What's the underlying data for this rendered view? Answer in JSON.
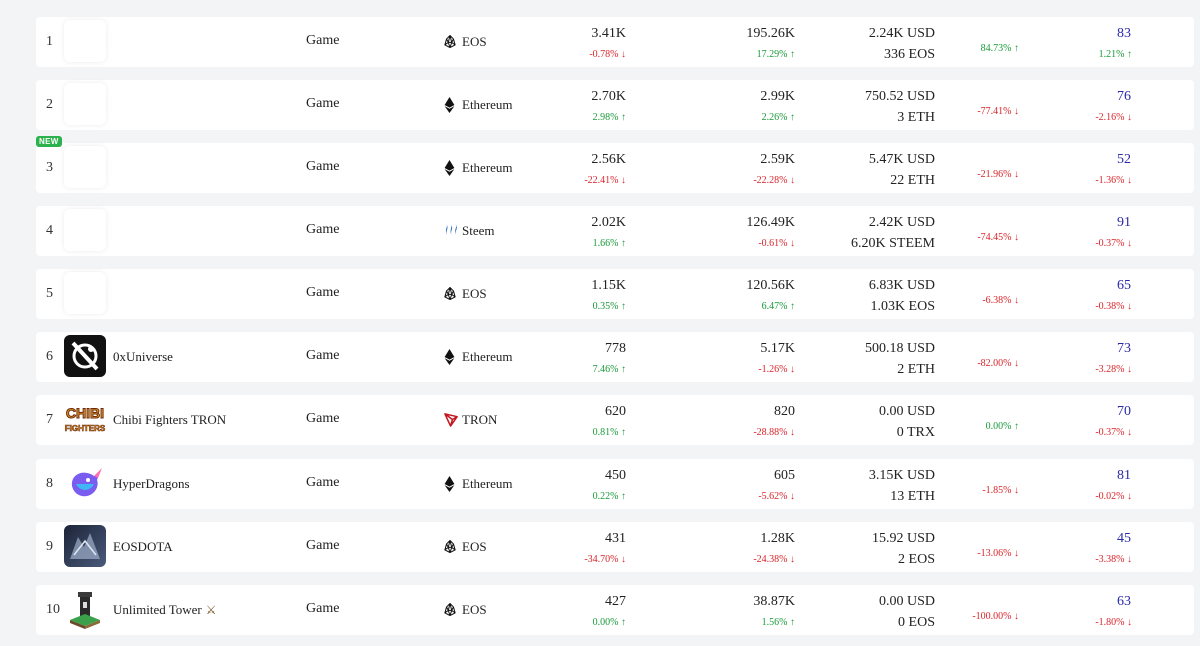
{
  "colors": {
    "up": "#1a9a3a",
    "down": "#d9252b",
    "score": "#2a2aa8",
    "new_badge": "#2bb24c"
  },
  "rows": [
    {
      "rank": "1",
      "name": "",
      "logo": "blank",
      "category": "Game",
      "chain": "EOS",
      "chain_icon": "eos-icon",
      "users": "3.41K",
      "users_change": "-0.78% ↓",
      "users_dir": "down",
      "tx": "195.26K",
      "tx_change": "17.29% ↑",
      "tx_dir": "up",
      "volume_usd": "2.24K USD",
      "volume_native": "336 EOS",
      "volume_change": "84.73% ↑",
      "volume_dir": "up",
      "score": "83",
      "score_change": "1.21% ↑",
      "score_dir": "up"
    },
    {
      "rank": "2",
      "name": "",
      "logo": "blank",
      "category": "Game",
      "chain": "Ethereum",
      "chain_icon": "ethereum-icon",
      "users": "2.70K",
      "users_change": "2.98% ↑",
      "users_dir": "up",
      "tx": "2.99K",
      "tx_change": "2.26% ↑",
      "tx_dir": "up",
      "volume_usd": "750.52 USD",
      "volume_native": "3 ETH",
      "volume_change": "-77.41% ↓",
      "volume_dir": "down",
      "score": "76",
      "score_change": "-2.16% ↓",
      "score_dir": "down"
    },
    {
      "rank": "3",
      "name": "",
      "logo": "blank",
      "badge": "NEW",
      "category": "Game",
      "chain": "Ethereum",
      "chain_icon": "ethereum-icon",
      "users": "2.56K",
      "users_change": "-22.41% ↓",
      "users_dir": "down",
      "tx": "2.59K",
      "tx_change": "-22.28% ↓",
      "tx_dir": "down",
      "volume_usd": "5.47K USD",
      "volume_native": "22 ETH",
      "volume_change": "-21.96% ↓",
      "volume_dir": "down",
      "score": "52",
      "score_change": "-1.36% ↓",
      "score_dir": "down"
    },
    {
      "rank": "4",
      "name": "",
      "logo": "blank",
      "category": "Game",
      "chain": "Steem",
      "chain_icon": "steem-icon",
      "users": "2.02K",
      "users_change": "1.66% ↑",
      "users_dir": "up",
      "tx": "126.49K",
      "tx_change": "-0.61% ↓",
      "tx_dir": "down",
      "volume_usd": "2.42K USD",
      "volume_native": "6.20K STEEM",
      "volume_change": "-74.45% ↓",
      "volume_dir": "down",
      "score": "91",
      "score_change": "-0.37% ↓",
      "score_dir": "down"
    },
    {
      "rank": "5",
      "name": "",
      "logo": "blank",
      "category": "Game",
      "chain": "EOS",
      "chain_icon": "eos-icon",
      "users": "1.15K",
      "users_change": "0.35% ↑",
      "users_dir": "up",
      "tx": "120.56K",
      "tx_change": "6.47% ↑",
      "tx_dir": "up",
      "volume_usd": "6.83K USD",
      "volume_native": "1.03K EOS",
      "volume_change": "-6.38% ↓",
      "volume_dir": "down",
      "score": "65",
      "score_change": "-0.38% ↓",
      "score_dir": "down"
    },
    {
      "rank": "6",
      "name": "0xUniverse",
      "logo": "0xuniverse",
      "category": "Game",
      "chain": "Ethereum",
      "chain_icon": "ethereum-icon",
      "users": "778",
      "users_change": "7.46% ↑",
      "users_dir": "up",
      "tx": "5.17K",
      "tx_change": "-1.26% ↓",
      "tx_dir": "down",
      "volume_usd": "500.18 USD",
      "volume_native": "2 ETH",
      "volume_change": "-82.00% ↓",
      "volume_dir": "down",
      "score": "73",
      "score_change": "-3.28% ↓",
      "score_dir": "down"
    },
    {
      "rank": "7",
      "name": "Chibi Fighters TRON",
      "logo": "chibi",
      "category": "Game",
      "chain": "TRON",
      "chain_icon": "tron-icon",
      "users": "620",
      "users_change": "0.81% ↑",
      "users_dir": "up",
      "tx": "820",
      "tx_change": "-28.88% ↓",
      "tx_dir": "down",
      "volume_usd": "0.00 USD",
      "volume_native": "0 TRX",
      "volume_change": "0.00% ↑",
      "volume_dir": "up",
      "score": "70",
      "score_change": "-0.37% ↓",
      "score_dir": "down"
    },
    {
      "rank": "8",
      "name": "HyperDragons",
      "logo": "hyperdragons",
      "category": "Game",
      "chain": "Ethereum",
      "chain_icon": "ethereum-icon",
      "users": "450",
      "users_change": "0.22% ↑",
      "users_dir": "up",
      "tx": "605",
      "tx_change": "-5.62% ↓",
      "tx_dir": "down",
      "volume_usd": "3.15K USD",
      "volume_native": "13 ETH",
      "volume_change": "-1.85% ↓",
      "volume_dir": "down",
      "score": "81",
      "score_change": "-0.02% ↓",
      "score_dir": "down"
    },
    {
      "rank": "9",
      "name": "EOSDOTA",
      "logo": "eosdota",
      "category": "Game",
      "chain": "EOS",
      "chain_icon": "eos-icon",
      "users": "431",
      "users_change": "-34.70% ↓",
      "users_dir": "down",
      "tx": "1.28K",
      "tx_change": "-24.38% ↓",
      "tx_dir": "down",
      "volume_usd": "15.92 USD",
      "volume_native": "2 EOS",
      "volume_change": "-13.06% ↓",
      "volume_dir": "down",
      "score": "45",
      "score_change": "-3.38% ↓",
      "score_dir": "down"
    },
    {
      "rank": "10",
      "name": "Unlimited Tower",
      "logo": "unlimitedtower",
      "trophy": true,
      "category": "Game",
      "chain": "EOS",
      "chain_icon": "eos-icon",
      "users": "427",
      "users_change": "0.00% ↑",
      "users_dir": "up",
      "tx": "38.87K",
      "tx_change": "1.56% ↑",
      "tx_dir": "up",
      "volume_usd": "0.00 USD",
      "volume_native": "0 EOS",
      "volume_change": "-100.00% ↓",
      "volume_dir": "down",
      "score": "63",
      "score_change": "-1.80% ↓",
      "score_dir": "down"
    }
  ]
}
